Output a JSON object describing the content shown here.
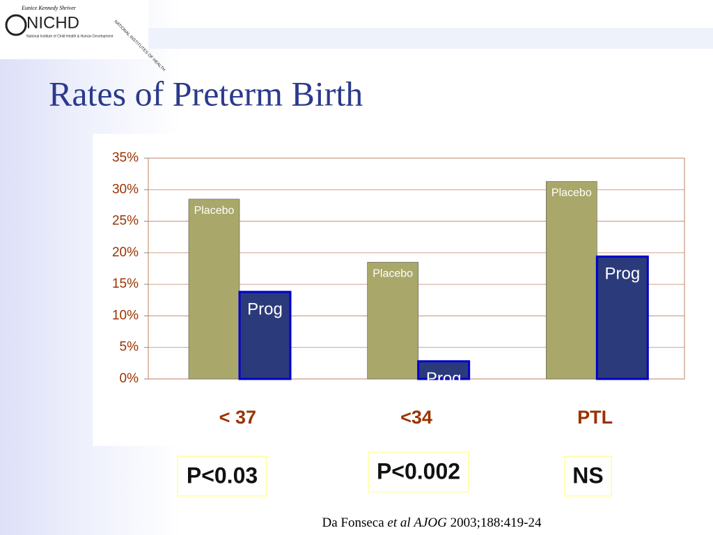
{
  "header": {
    "logo": {
      "tagline": "Eunice Kennedy Shriver",
      "name": "NICHD",
      "subtitle": "National Institute of Child Health & Human Development",
      "nih": "NATIONAL INSTITUTES OF HEALTH"
    }
  },
  "chart_data": {
    "type": "bar",
    "title": "Rates of Preterm Birth",
    "categories": [
      "< 37",
      "<34",
      "PTL"
    ],
    "series": [
      {
        "name": "Placebo",
        "color": "#a9a86a",
        "values": [
          28.5,
          18.5,
          31.3
        ]
      },
      {
        "name": "Prog",
        "color": "#2b3a7a",
        "values": [
          13.8,
          2.8,
          19.4
        ]
      }
    ],
    "ylim": [
      0,
      35
    ],
    "yticks": [
      {
        "value": 0,
        "label": "0%"
      },
      {
        "value": 5,
        "label": "5%"
      },
      {
        "value": 10,
        "label": "10%"
      },
      {
        "value": 15,
        "label": "15%"
      },
      {
        "value": 20,
        "label": "20%"
      },
      {
        "value": 25,
        "label": "25%"
      },
      {
        "value": 30,
        "label": "30%"
      },
      {
        "value": 35,
        "label": "35%"
      }
    ],
    "grid": true,
    "annotations": [
      "P<0.03",
      "P<0.002",
      "NS"
    ],
    "citation": [
      "Da Fonseca",
      "et al",
      "AJOG",
      "2003;188:419-24"
    ]
  }
}
